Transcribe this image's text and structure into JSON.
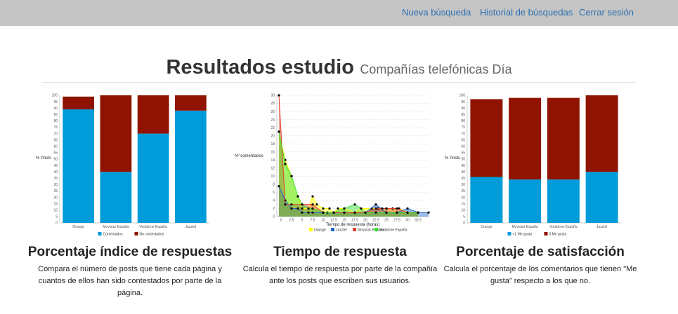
{
  "nav": {
    "items": [
      "Nueva búsqueda",
      "Historial de búsquedas",
      "Cerrar sesión"
    ]
  },
  "heading": {
    "title": "Resultados estudio",
    "subtitle": "Compañías telefónicas Día"
  },
  "panels": [
    {
      "title": "Porcentaje índice de respuestas",
      "description": "Compara el número de posts que tiene cada página y cuantos de ellos han sido contestados por parte de la página."
    },
    {
      "title": "Tiempo de respuesta",
      "description": "Calcula el tiempo de respuesta por parte de la compañía ante los posts que escriben sus usuarios."
    },
    {
      "title": "Porcentaje de satisfacción",
      "description": "Calcula el porcentaje de los comentarios que tienen \"Me gusta\" respecto a los que no."
    }
  ],
  "chart_data": [
    {
      "type": "bar",
      "stacked": true,
      "categories": [
        "Orange",
        "Movistar España",
        "Vodafone España",
        "Jazztel"
      ],
      "ylabel": "% Posts",
      "ylim": [
        0,
        100
      ],
      "yticks": [
        0,
        5,
        10,
        15,
        20,
        25,
        30,
        35,
        40,
        45,
        50,
        55,
        60,
        65,
        70,
        75,
        80,
        85,
        90,
        95,
        100
      ],
      "legend_position": "bottom",
      "series": [
        {
          "name": "Contestados",
          "color": "#009bd9",
          "values": [
            89,
            40,
            70,
            88
          ]
        },
        {
          "name": "No contestados",
          "color": "#8f1300",
          "values": [
            10,
            60,
            30,
            12
          ]
        }
      ]
    },
    {
      "type": "area",
      "xlabel": "Tiempo de respuesta (horas)",
      "ylabel": "Nº comentarios",
      "xlim": [
        -1,
        35
      ],
      "ylim": [
        0,
        30
      ],
      "xticks": [
        0,
        2.5,
        5,
        7.5,
        10,
        12.5,
        15,
        17.5,
        20,
        22.5,
        25,
        27.5,
        30,
        32.5
      ],
      "yticks": [
        0,
        2,
        4,
        6,
        8,
        10,
        12,
        14,
        16,
        18,
        20,
        22,
        24,
        26,
        28,
        30
      ],
      "grid": true,
      "legend_position": "bottom",
      "series": [
        {
          "name": "Orange",
          "color": "#ffff00",
          "points": [
            [
              -0.5,
              21
            ],
            [
              1,
              14
            ],
            [
              2.5,
              10
            ],
            [
              4,
              5
            ],
            [
              5,
              2
            ],
            [
              6.5,
              2
            ],
            [
              7.5,
              5
            ],
            [
              8.5,
              3
            ],
            [
              10,
              2
            ],
            [
              11.5,
              2
            ],
            [
              12.5,
              1
            ],
            [
              13.5,
              2
            ],
            [
              15,
              2
            ],
            [
              17.5,
              1
            ],
            [
              19,
              2
            ],
            [
              21.5,
              2
            ],
            [
              23,
              2
            ],
            [
              25,
              2
            ],
            [
              26.5,
              2
            ],
            [
              28,
              2
            ],
            [
              30,
              1
            ],
            [
              32.5,
              1
            ]
          ]
        },
        {
          "name": "Jazztel",
          "color": "#2266cc",
          "points": [
            [
              -0.5,
              7.5
            ],
            [
              1,
              4
            ],
            [
              2.5,
              2
            ],
            [
              4,
              2
            ],
            [
              5,
              1
            ],
            [
              6.5,
              1
            ],
            [
              7.5,
              1
            ],
            [
              10,
              1
            ],
            [
              12.5,
              1
            ],
            [
              15,
              1
            ],
            [
              17.5,
              1
            ],
            [
              20,
              1
            ],
            [
              22.5,
              3
            ],
            [
              25,
              1
            ],
            [
              27.5,
              1
            ],
            [
              30,
              2
            ],
            [
              32.5,
              1
            ],
            [
              35,
              1
            ]
          ]
        },
        {
          "name": "Movistar España",
          "color": "#e53d2c",
          "points": [
            [
              -0.5,
              30
            ],
            [
              1,
              3
            ],
            [
              2.5,
              3
            ],
            [
              5,
              3
            ],
            [
              7.5,
              3
            ],
            [
              10,
              1
            ],
            [
              11,
              1
            ],
            [
              12.5,
              1
            ],
            [
              15,
              1
            ],
            [
              17.5,
              1
            ],
            [
              20,
              1
            ],
            [
              22.5,
              2
            ],
            [
              24,
              2
            ],
            [
              25,
              2
            ],
            [
              27.5,
              2
            ],
            [
              30,
              1
            ],
            [
              32.5,
              1
            ]
          ]
        },
        {
          "name": "Vodafone España",
          "color": "#33dd33",
          "points": [
            [
              -0.5,
              21
            ],
            [
              1,
              13
            ],
            [
              2.5,
              10
            ],
            [
              4,
              5
            ],
            [
              5,
              3
            ],
            [
              6.5,
              2
            ],
            [
              7.5,
              2
            ],
            [
              10,
              1
            ],
            [
              12.5,
              1
            ],
            [
              15,
              2
            ],
            [
              17.5,
              3
            ],
            [
              19,
              2
            ],
            [
              20,
              1
            ],
            [
              22.5,
              1
            ],
            [
              25,
              1
            ],
            [
              27.5,
              1
            ],
            [
              30,
              1
            ],
            [
              32.5,
              1
            ]
          ]
        }
      ]
    },
    {
      "type": "bar",
      "stacked": true,
      "categories": [
        "Orange",
        "Movistar España",
        "Vodafone España",
        "Jazztel"
      ],
      "ylabel": "% Posts",
      "ylim": [
        0,
        100
      ],
      "yticks": [
        0,
        5,
        10,
        15,
        20,
        25,
        30,
        35,
        40,
        45,
        50,
        55,
        60,
        65,
        70,
        75,
        80,
        85,
        90,
        95,
        100
      ],
      "legend_position": "bottom",
      "series": [
        {
          "name": "<1 Me gusta",
          "color": "#009bd9",
          "values": [
            36,
            34,
            34,
            40
          ]
        },
        {
          "name": "0 Me gusta",
          "color": "#8f1300",
          "values": [
            61,
            64,
            64,
            60
          ]
        }
      ]
    }
  ]
}
